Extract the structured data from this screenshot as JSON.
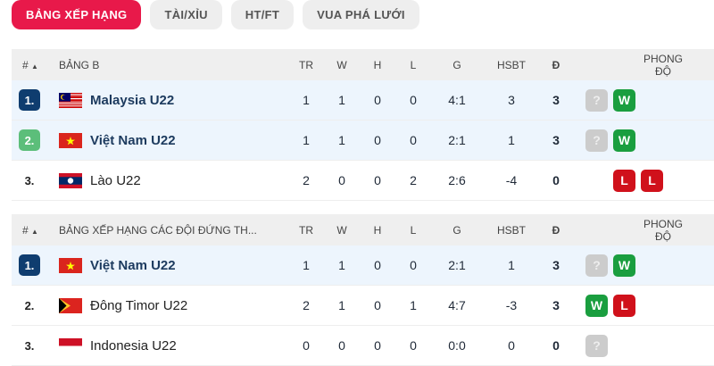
{
  "tabs": [
    "BẢNG XẾP HẠNG",
    "TÀI/XỈU",
    "HT/FT",
    "VUA PHÁ LƯỚI"
  ],
  "columns": {
    "rank": "#",
    "sort": "▲",
    "tr": "TR",
    "w": "W",
    "h": "H",
    "l": "L",
    "g": "G",
    "hsbt": "HSBT",
    "d": "Đ",
    "form": "PHONG ĐỘ"
  },
  "tables": [
    {
      "title": "BẢNG B",
      "rows": [
        {
          "rank": "1.",
          "rank_style": "blue",
          "team": "Malaysia U22",
          "flag": "malaysia",
          "bold": true,
          "tr": "1",
          "w": "1",
          "h": "0",
          "l": "0",
          "g": "4:1",
          "hsbt": "3",
          "d": "3",
          "form": [
            "?",
            "W"
          ]
        },
        {
          "rank": "2.",
          "rank_style": "green",
          "team": "Việt Nam U22",
          "flag": "vietnam",
          "bold": true,
          "tr": "1",
          "w": "1",
          "h": "0",
          "l": "0",
          "g": "2:1",
          "hsbt": "1",
          "d": "3",
          "form": [
            "?",
            "W"
          ]
        },
        {
          "rank": "3.",
          "rank_style": "plain",
          "team": "Lào U22",
          "flag": "laos",
          "bold": false,
          "tr": "2",
          "w": "0",
          "h": "0",
          "l": "2",
          "g": "2:6",
          "hsbt": "-4",
          "d": "0",
          "form": [
            "L",
            "L"
          ]
        }
      ]
    },
    {
      "title": "BẢNG XẾP HẠNG CÁC ĐỘI ĐỨNG TH...",
      "rows": [
        {
          "rank": "1.",
          "rank_style": "blue",
          "team": "Việt Nam U22",
          "flag": "vietnam",
          "bold": true,
          "tr": "1",
          "w": "1",
          "h": "0",
          "l": "0",
          "g": "2:1",
          "hsbt": "1",
          "d": "3",
          "form": [
            "?",
            "W"
          ]
        },
        {
          "rank": "2.",
          "rank_style": "plain",
          "team": "Đông Timor U22",
          "flag": "timor",
          "bold": false,
          "tr": "2",
          "w": "1",
          "h": "0",
          "l": "1",
          "g": "4:7",
          "hsbt": "-3",
          "d": "3",
          "form": [
            "W",
            "L"
          ]
        },
        {
          "rank": "3.",
          "rank_style": "plain",
          "team": "Indonesia U22",
          "flag": "indonesia",
          "bold": false,
          "tr": "0",
          "w": "0",
          "h": "0",
          "l": "0",
          "g": "0:0",
          "hsbt": "0",
          "d": "0",
          "form": [
            "?"
          ]
        }
      ]
    }
  ],
  "colors": {
    "accent": "#e8194a",
    "win": "#1a9e3f",
    "loss": "#d0111b",
    "unknown": "#cccccc",
    "rank_top": "#0f3d6f",
    "rank_second": "#5cbe7a"
  }
}
